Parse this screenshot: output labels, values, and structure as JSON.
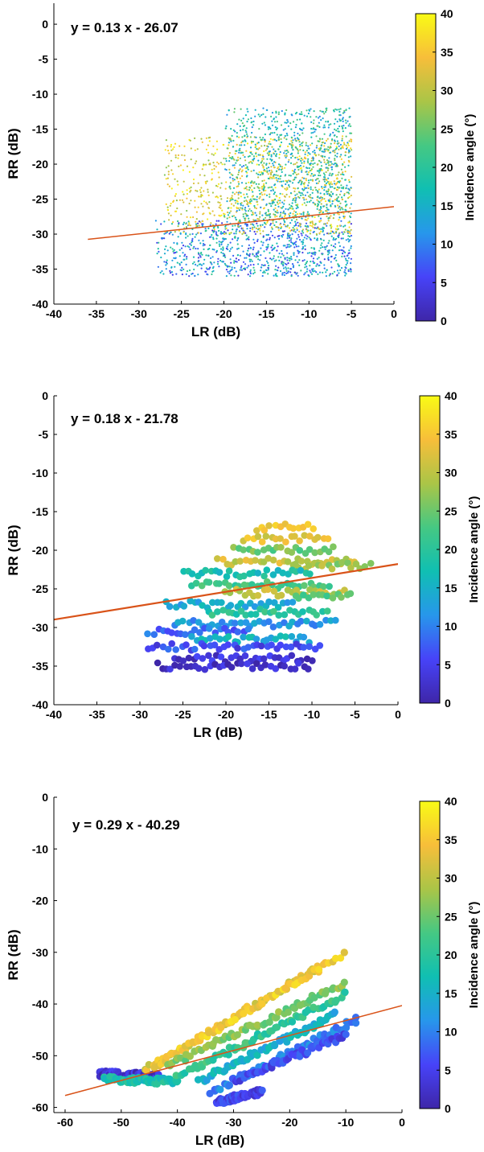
{
  "colorbar": {
    "label": "Incidence angle (°)",
    "range": [
      0,
      40
    ],
    "ticks": [
      "0",
      "5",
      "10",
      "15",
      "20",
      "25",
      "30",
      "35",
      "40"
    ],
    "colormap": "parula",
    "stops": [
      "#3e26a8",
      "#4743f8",
      "#2797eb",
      "#10bfb2",
      "#45c883",
      "#aac547",
      "#f7be3a",
      "#f9fb15"
    ]
  },
  "fit_line_color": "#d95319",
  "chart_data": [
    {
      "type": "scatter",
      "equation": "y = 0.13 x - 26.07",
      "xlabel": "LR (dB)",
      "ylabel": "RR (dB)",
      "xlim": [
        -40,
        0
      ],
      "ylim": [
        -40,
        3
      ],
      "xticks": [
        "-40",
        "-35",
        "-30",
        "-25",
        "-20",
        "-15",
        "-10",
        "-5",
        "0"
      ],
      "yticks": [
        "-40",
        "-35",
        "-30",
        "-25",
        "-20",
        "-15",
        "-10",
        "-5",
        "0"
      ],
      "fit": {
        "slope": 0.13,
        "intercept": -26.07,
        "x_range": [
          -36,
          0
        ]
      },
      "marker": "dot",
      "point_clusters": [
        {
          "name": "",
          "x_range": [
            -28,
            -5
          ],
          "y_range": [
            -36,
            -28
          ],
          "angle_range": [
            3,
            22
          ]
        },
        {
          "name": "",
          "x_range": [
            -27,
            -5
          ],
          "y_range": [
            -30,
            -16
          ],
          "angle_range": [
            26,
            40
          ]
        },
        {
          "name": "",
          "x_range": [
            -20,
            -5
          ],
          "y_range": [
            -28,
            -12
          ],
          "angle_range": [
            10,
            25
          ]
        }
      ]
    },
    {
      "type": "scatter",
      "equation": "y = 0.18 x - 21.78",
      "xlabel": "LR (dB)",
      "ylabel": "RR (dB)",
      "xlim": [
        -40,
        0
      ],
      "ylim": [
        -40,
        0
      ],
      "xticks": [
        "-40",
        "-35",
        "-30",
        "-25",
        "-20",
        "-15",
        "-10",
        "-5",
        "0"
      ],
      "yticks": [
        "-40",
        "-35",
        "-30",
        "-25",
        "-20",
        "-15",
        "-10",
        "-5",
        "0"
      ],
      "fit": {
        "slope": 0.18,
        "intercept": -21.78,
        "x_range": [
          -40,
          0
        ]
      },
      "marker": "circle",
      "rows": [
        {
          "y": -17.0,
          "x0": -16.5,
          "x1": -9.5,
          "angle": 34
        },
        {
          "y": -18.5,
          "x0": -18,
          "x1": -8,
          "angle": 33
        },
        {
          "y": -20.0,
          "x0": -19,
          "x1": -7,
          "angle": 25
        },
        {
          "y": -21.5,
          "x0": -21,
          "x1": -5,
          "angle": 31
        },
        {
          "y": -22.0,
          "x0": -12,
          "x1": -3,
          "angle": 28
        },
        {
          "y": -23.0,
          "x0": -25,
          "x1": -10,
          "angle": 18
        },
        {
          "y": -24.5,
          "x0": -24,
          "x1": -8,
          "angle": 22
        },
        {
          "y": -25.5,
          "x0": -20,
          "x1": -6,
          "angle": 30
        },
        {
          "y": -26.0,
          "x0": -12,
          "x1": -5,
          "angle": 24
        },
        {
          "y": -27.0,
          "x0": -27,
          "x1": -12,
          "angle": 14
        },
        {
          "y": -28.0,
          "x0": -22,
          "x1": -8,
          "angle": 20
        },
        {
          "y": -29.5,
          "x0": -26,
          "x1": -7,
          "angle": 12
        },
        {
          "y": -30.5,
          "x0": -29,
          "x1": -17,
          "angle": 8
        },
        {
          "y": -31.5,
          "x0": -24,
          "x1": -10,
          "angle": 15
        },
        {
          "y": -32.5,
          "x0": -29,
          "x1": -9,
          "angle": 6
        },
        {
          "y": -34.0,
          "x0": -26,
          "x1": -10,
          "angle": 3
        },
        {
          "y": -35.0,
          "x0": -28,
          "x1": -10,
          "angle": 2
        }
      ]
    },
    {
      "type": "scatter",
      "equation": "y = 0.29 x - 40.29",
      "xlabel": "LR (dB)",
      "ylabel": "RR (dB)",
      "xlim": [
        -62,
        0
      ],
      "ylim": [
        -61,
        0
      ],
      "xticks": [
        "-60",
        "-50",
        "-40",
        "-30",
        "-20",
        "-10",
        "0"
      ],
      "yticks": [
        "-60",
        "-50",
        "-40",
        "-30",
        "-20",
        "-10",
        "0"
      ],
      "fit": {
        "slope": 0.29,
        "intercept": -40.29,
        "x_range": [
          -60,
          0
        ]
      },
      "marker": "circle",
      "bands": [
        {
          "x0": -54,
          "y0": -53.5,
          "x1": -43,
          "y1": -54,
          "angle": 3
        },
        {
          "x0": -53,
          "y0": -54.5,
          "x1": -40,
          "y1": -55,
          "angle": 18
        },
        {
          "x0": -46,
          "y0": -53,
          "x1": -15,
          "y1": -33,
          "angle": 33
        },
        {
          "x0": -44,
          "y0": -52,
          "x1": -10,
          "y1": -30,
          "angle": 35
        },
        {
          "x0": -42,
          "y0": -52,
          "x1": -10,
          "y1": -36,
          "angle": 26
        },
        {
          "x0": -40,
          "y0": -54,
          "x1": -10,
          "y1": -38,
          "angle": 21
        },
        {
          "x0": -36,
          "y0": -55,
          "x1": -12,
          "y1": -42,
          "angle": 15
        },
        {
          "x0": -34,
          "y0": -57,
          "x1": -8,
          "y1": -43,
          "angle": 10
        },
        {
          "x0": -30,
          "y0": -55,
          "x1": -10,
          "y1": -46,
          "angle": 6
        },
        {
          "x0": -33,
          "y0": -59,
          "x1": -25,
          "y1": -57,
          "angle": 5
        }
      ]
    }
  ]
}
